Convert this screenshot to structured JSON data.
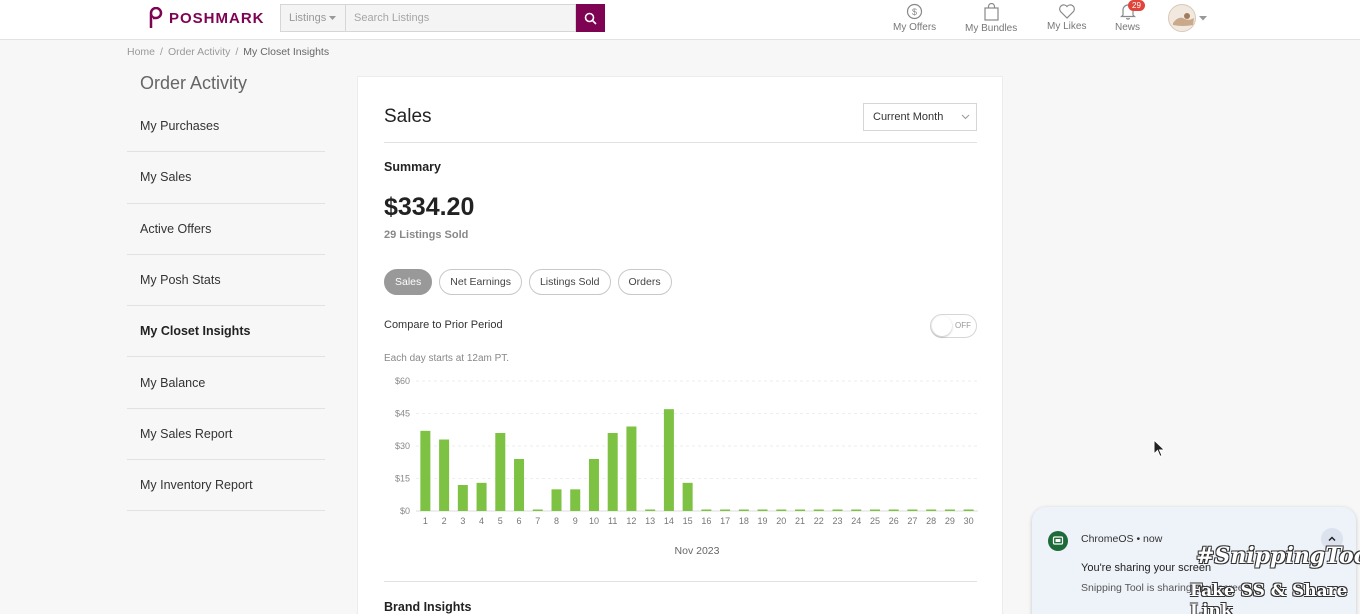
{
  "header": {
    "logo_text": "POSHMARK",
    "search_category": "Listings",
    "search_placeholder": "Search Listings",
    "nav": {
      "offers": "My Offers",
      "bundles": "My Bundles",
      "likes": "My Likes",
      "news": "News",
      "news_count": "29"
    },
    "brand_color": "#7f0353"
  },
  "breadcrumb": [
    "Home",
    "Order Activity",
    "My Closet Insights"
  ],
  "sidebar": {
    "title": "Order Activity",
    "items": [
      {
        "label": "My Purchases"
      },
      {
        "label": "My Sales"
      },
      {
        "label": "Active Offers"
      },
      {
        "label": "My Posh Stats"
      },
      {
        "label": "My Closet Insights"
      },
      {
        "label": "My Balance"
      },
      {
        "label": "My Sales Report"
      },
      {
        "label": "My Inventory Report"
      }
    ]
  },
  "main": {
    "title": "Sales",
    "period": "Current Month",
    "summary_label": "Summary",
    "amount": "$334.20",
    "listings_sold": "29 Listings Sold",
    "tabs": [
      {
        "label": "Sales"
      },
      {
        "label": "Net Earnings"
      },
      {
        "label": "Listings Sold"
      },
      {
        "label": "Orders"
      }
    ],
    "compare_label": "Compare to Prior Period",
    "toggle_state": "OFF",
    "day_note": "Each day starts at 12am PT.",
    "brand_insights": "Brand Insights"
  },
  "chart_data": {
    "type": "bar",
    "xlabel": "Nov 2023",
    "ylim": [
      0,
      60
    ],
    "yticks": [
      "$0",
      "$15",
      "$30",
      "$45",
      "$60"
    ],
    "categories": [
      "1",
      "2",
      "3",
      "4",
      "5",
      "6",
      "7",
      "8",
      "9",
      "10",
      "11",
      "12",
      "13",
      "14",
      "15",
      "16",
      "17",
      "18",
      "19",
      "20",
      "21",
      "22",
      "23",
      "24",
      "25",
      "26",
      "27",
      "28",
      "29",
      "30"
    ],
    "values": [
      37,
      33,
      12,
      13,
      36,
      24,
      0,
      10,
      10,
      24,
      36,
      39,
      0,
      47,
      13,
      0,
      0,
      0,
      0,
      0,
      0,
      0,
      0,
      0,
      0,
      0,
      0,
      0,
      0,
      0
    ],
    "bar_color": "#7dc242",
    "grid": true
  },
  "notification": {
    "source": "ChromeOS",
    "time": "now",
    "title": "You're sharing your screen",
    "body": "Snipping Tool is sharing your screen",
    "watermark_line1": "#SnippingTool",
    "watermark_line2": "Fake SS & Share Link"
  }
}
